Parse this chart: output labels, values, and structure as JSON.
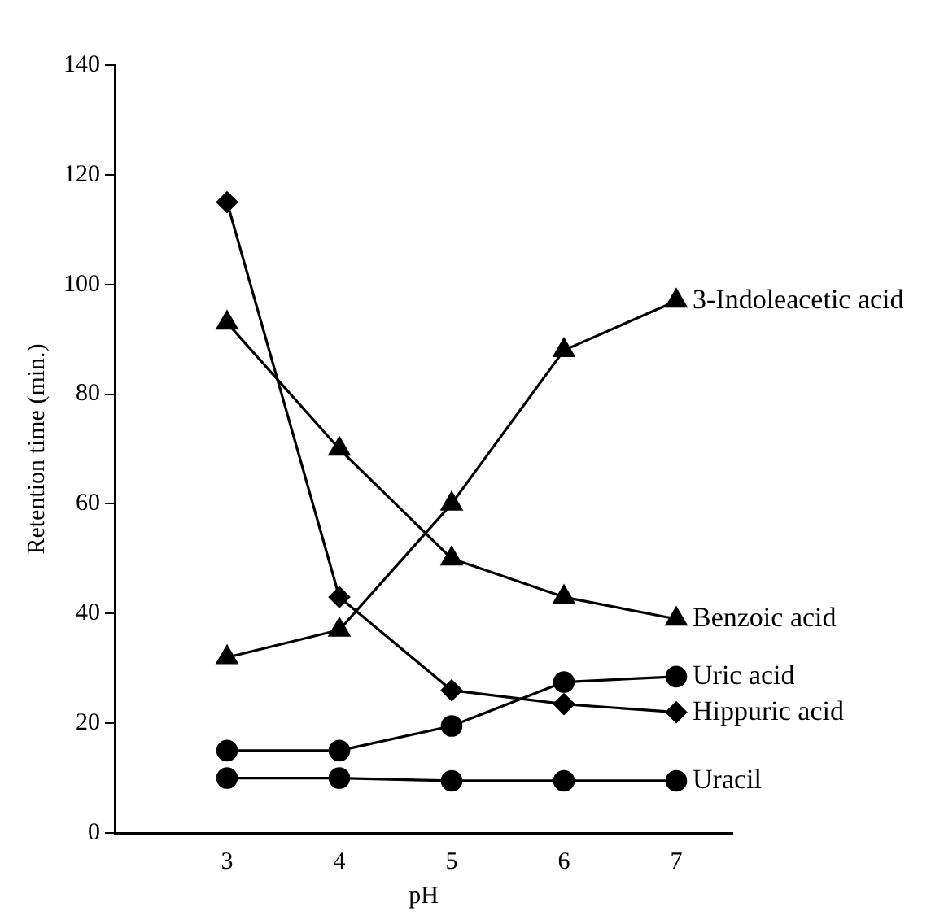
{
  "chart_data": {
    "type": "line",
    "xlabel": "pH",
    "ylabel": "Retention time (min.)",
    "x": [
      3,
      4,
      5,
      6,
      7
    ],
    "xlim": [
      2,
      7.5
    ],
    "xticks": [
      3,
      4,
      5,
      6,
      7
    ],
    "ylim": [
      0,
      140
    ],
    "yticks": [
      0,
      20,
      40,
      60,
      80,
      100,
      120,
      140
    ],
    "grid": false,
    "legend": false,
    "line_style": "solid",
    "series": [
      {
        "name": "3-Indoleacetic acid",
        "color": "#000000",
        "marker": "triangle",
        "values": [
          32,
          37,
          60,
          88,
          97
        ]
      },
      {
        "name": "Benzoic acid",
        "color": "#000000",
        "marker": "triangle",
        "values": [
          93,
          70,
          50,
          43,
          39
        ]
      },
      {
        "name": "Uric acid",
        "color": "#000000",
        "marker": "circle",
        "values": [
          15,
          15,
          19.5,
          27.5,
          28.5
        ]
      },
      {
        "name": "Hippuric acid",
        "color": "#000000",
        "marker": "diamond",
        "values": [
          115,
          43,
          26,
          23.5,
          22
        ]
      },
      {
        "name": "Uracil",
        "color": "#000000",
        "marker": "circle",
        "values": [
          10,
          10,
          9.5,
          9.5,
          9.5
        ]
      }
    ]
  }
}
